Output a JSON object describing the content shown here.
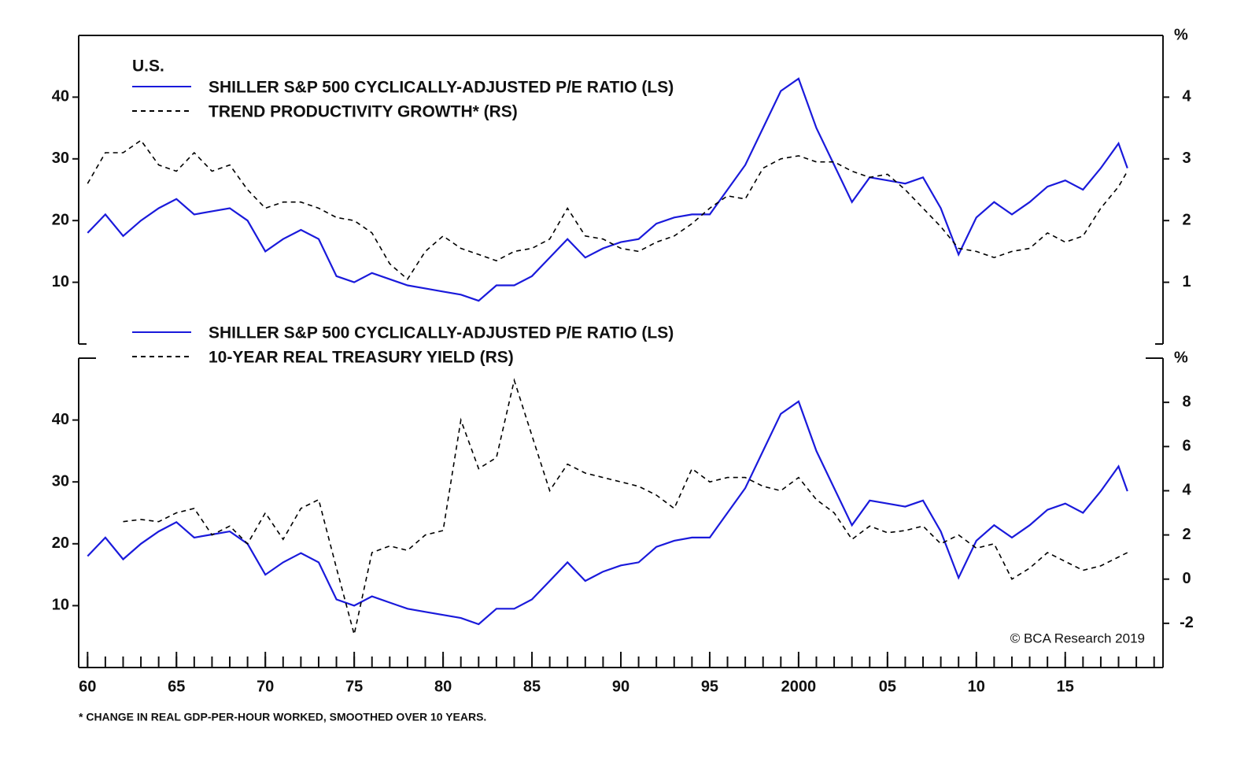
{
  "chart_data": [
    {
      "type": "line",
      "title": "U.S.",
      "x": [
        1960,
        1961,
        1962,
        1963,
        1964,
        1965,
        1966,
        1967,
        1968,
        1969,
        1970,
        1971,
        1972,
        1973,
        1974,
        1975,
        1976,
        1977,
        1978,
        1979,
        1980,
        1981,
        1982,
        1983,
        1984,
        1985,
        1986,
        1987,
        1988,
        1989,
        1990,
        1991,
        1992,
        1993,
        1994,
        1995,
        1996,
        1997,
        1998,
        1999,
        2000,
        2001,
        2002,
        2003,
        2004,
        2005,
        2006,
        2007,
        2008,
        2009,
        2010,
        2011,
        2012,
        2013,
        2014,
        2015,
        2016,
        2017,
        2018,
        2018.5
      ],
      "xlim": [
        1959.5,
        2020.5
      ],
      "ylim": [
        0,
        50
      ],
      "yticks": [
        10,
        20,
        30,
        40
      ],
      "y2lim": [
        0,
        5
      ],
      "y2ticks": [
        1,
        2,
        3,
        4
      ],
      "y2label": "%",
      "series": [
        {
          "name": "SHILLER S&P 500 CYCLICALLY-ADJUSTED P/E RATIO (LS)",
          "color": "#1a1adb",
          "dashed": false,
          "values": [
            18,
            21,
            17.5,
            20,
            22,
            23.5,
            21,
            21.5,
            22,
            20,
            15,
            17,
            18.5,
            17,
            11,
            10,
            11.5,
            10.5,
            9.5,
            9,
            8.5,
            8,
            7,
            9.5,
            9.5,
            11,
            14,
            17,
            14,
            15.5,
            16.5,
            17,
            19.5,
            20.5,
            21,
            21,
            25,
            29,
            35,
            41,
            43,
            35,
            29,
            23,
            27,
            26.5,
            26,
            27,
            22,
            14.5,
            20.5,
            23,
            21,
            23,
            25.5,
            26.5,
            25,
            28.5,
            32.5,
            28.5
          ]
        },
        {
          "name": "TREND PRODUCTIVITY GROWTH* (RS)",
          "color": "#000000",
          "dashed": true,
          "axis": "y2",
          "values": [
            2.6,
            3.1,
            3.1,
            3.3,
            2.9,
            2.8,
            3.1,
            2.8,
            2.9,
            2.5,
            2.2,
            2.3,
            2.3,
            2.2,
            2.05,
            2.0,
            1.8,
            1.3,
            1.05,
            1.5,
            1.75,
            1.55,
            1.45,
            1.35,
            1.5,
            1.55,
            1.7,
            2.2,
            1.75,
            1.7,
            1.55,
            1.5,
            1.65,
            1.75,
            1.95,
            2.2,
            2.4,
            2.35,
            2.85,
            3.0,
            3.05,
            2.95,
            2.95,
            2.8,
            2.7,
            2.75,
            2.5,
            2.2,
            1.9,
            1.55,
            1.5,
            1.4,
            1.5,
            1.55,
            1.8,
            1.65,
            1.75,
            2.2,
            2.55,
            2.8
          ]
        }
      ]
    },
    {
      "type": "line",
      "x": [
        1960,
        1961,
        1962,
        1963,
        1964,
        1965,
        1966,
        1967,
        1968,
        1969,
        1970,
        1971,
        1972,
        1973,
        1974,
        1975,
        1976,
        1977,
        1978,
        1979,
        1980,
        1981,
        1982,
        1983,
        1984,
        1985,
        1986,
        1987,
        1988,
        1989,
        1990,
        1991,
        1992,
        1993,
        1994,
        1995,
        1996,
        1997,
        1998,
        1999,
        2000,
        2001,
        2002,
        2003,
        2004,
        2005,
        2006,
        2007,
        2008,
        2009,
        2010,
        2011,
        2012,
        2013,
        2014,
        2015,
        2016,
        2017,
        2018,
        2018.5
      ],
      "xlim": [
        1959.5,
        2020.5
      ],
      "xticks": [
        {
          "value": 1960,
          "label": "60"
        },
        {
          "value": 1965,
          "label": "65"
        },
        {
          "value": 1970,
          "label": "70"
        },
        {
          "value": 1975,
          "label": "75"
        },
        {
          "value": 1980,
          "label": "80"
        },
        {
          "value": 1985,
          "label": "85"
        },
        {
          "value": 1990,
          "label": "90"
        },
        {
          "value": 1995,
          "label": "95"
        },
        2000,
        {
          "value": 2005,
          "label": "05"
        },
        {
          "value": 2010,
          "label": "10"
        },
        {
          "value": 2015,
          "label": "15"
        }
      ],
      "ylim": [
        0,
        50
      ],
      "yticks": [
        10,
        20,
        30,
        40
      ],
      "y2lim": [
        -4,
        10
      ],
      "y2ticks": [
        -2,
        0,
        2,
        4,
        6,
        8
      ],
      "y2label": "%",
      "series": [
        {
          "name": "SHILLER S&P 500 CYCLICALLY-ADJUSTED P/E RATIO (LS)",
          "color": "#1a1adb",
          "dashed": false,
          "values": [
            18,
            21,
            17.5,
            20,
            22,
            23.5,
            21,
            21.5,
            22,
            20,
            15,
            17,
            18.5,
            17,
            11,
            10,
            11.5,
            10.5,
            9.5,
            9,
            8.5,
            8,
            7,
            9.5,
            9.5,
            11,
            14,
            17,
            14,
            15.5,
            16.5,
            17,
            19.5,
            20.5,
            21,
            21,
            25,
            29,
            35,
            41,
            43,
            35,
            29,
            23,
            27,
            26.5,
            26,
            27,
            22,
            14.5,
            20.5,
            23,
            21,
            23,
            25.5,
            26.5,
            25,
            28.5,
            32.5,
            28.5
          ]
        },
        {
          "name": "10-YEAR REAL TREASURY YIELD (RS)",
          "color": "#000000",
          "dashed": true,
          "axis": "y2",
          "values": [
            null,
            null,
            2.6,
            2.7,
            2.6,
            3.0,
            3.2,
            2.0,
            2.4,
            1.6,
            3.0,
            1.8,
            3.2,
            3.6,
            0.5,
            -2.5,
            1.2,
            1.5,
            1.3,
            2.0,
            2.2,
            7.2,
            5.0,
            5.5,
            9.0,
            6.5,
            4.0,
            5.2,
            4.8,
            4.6,
            4.4,
            4.2,
            3.8,
            3.2,
            5.0,
            4.4,
            4.6,
            4.6,
            4.2,
            4.0,
            4.6,
            3.6,
            3.0,
            1.8,
            2.4,
            2.1,
            2.2,
            2.4,
            1.6,
            2.0,
            1.4,
            1.6,
            0.0,
            0.5,
            1.2,
            0.8,
            0.4,
            0.6,
            1.0,
            1.2
          ]
        }
      ],
      "source": "© BCA Research 2019",
      "note": "* CHANGE IN REAL GDP-PER-HOUR WORKED, SMOOTHED OVER 10 YEARS."
    }
  ]
}
